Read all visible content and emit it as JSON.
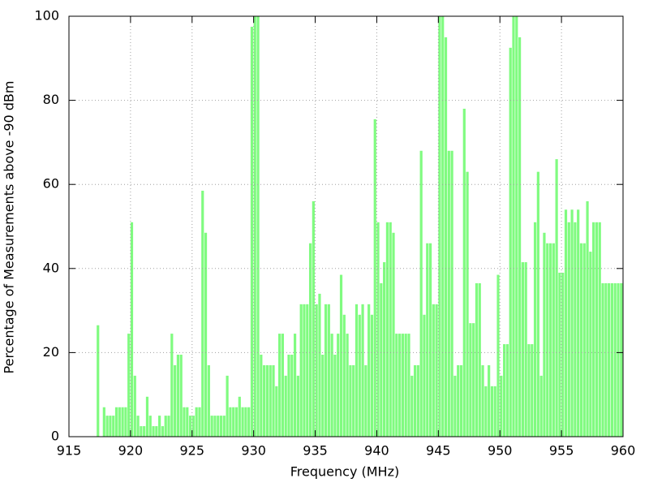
{
  "chart_data": {
    "type": "histogram",
    "x_label": "Frequency (MHz)",
    "y_label": "Percentage of Measurements above -90 dBm",
    "color": "#80fb80",
    "grid": true,
    "xlim": [
      915,
      960
    ],
    "ylim": [
      0,
      100
    ],
    "xticks": [
      915,
      920,
      925,
      930,
      935,
      940,
      945,
      950,
      955,
      960
    ],
    "yticks": [
      0,
      20,
      40,
      60,
      80,
      100
    ],
    "bins": [
      917.25,
      917.5,
      917.75,
      918,
      918.25,
      918.5,
      918.75,
      919,
      919.25,
      919.5,
      919.75,
      920,
      920.25,
      920.5,
      920.75,
      921,
      921.25,
      921.5,
      921.75,
      922,
      922.25,
      922.5,
      922.75,
      923,
      923.25,
      923.5,
      923.75,
      924,
      924.25,
      924.5,
      924.75,
      925,
      925.25,
      925.5,
      925.75,
      926,
      926.25,
      926.5,
      926.75,
      927,
      927.25,
      927.5,
      927.75,
      928,
      928.25,
      928.5,
      928.75,
      929,
      929.25,
      929.5,
      929.75,
      930,
      930.25,
      930.5,
      930.75,
      931,
      931.25,
      931.5,
      931.75,
      932,
      932.25,
      932.5,
      932.75,
      933,
      933.25,
      933.5,
      933.75,
      934,
      934.25,
      934.5,
      934.75,
      935,
      935.25,
      935.5,
      935.75,
      936,
      936.25,
      936.5,
      936.75,
      937,
      937.25,
      937.5,
      937.75,
      938,
      938.25,
      938.5,
      938.75,
      939,
      939.25,
      939.5,
      939.75,
      940,
      940.25,
      940.5,
      940.75,
      941,
      941.25,
      941.5,
      941.75,
      942,
      942.25,
      942.5,
      942.75,
      943,
      943.25,
      943.5,
      943.75,
      944,
      944.25,
      944.5,
      944.75,
      945,
      945.25,
      945.5,
      945.75,
      946,
      946.25,
      946.5,
      946.75,
      947,
      947.25,
      947.5,
      947.75,
      948,
      948.25,
      948.5,
      948.75,
      949,
      949.25,
      949.5,
      949.75,
      950,
      950.25,
      950.5,
      950.75,
      951,
      951.25,
      951.5,
      951.75,
      952,
      952.25,
      952.5,
      952.75,
      953,
      953.25,
      953.5,
      953.75,
      954,
      954.25,
      954.5,
      954.75,
      955,
      955.25,
      955.5,
      955.75,
      956,
      956.25,
      956.5,
      956.75,
      957,
      957.25,
      957.5,
      957.75,
      958,
      958.25,
      958.5,
      958.75,
      959,
      959.25,
      959.5,
      959.75,
      960
    ],
    "values": [
      26.5,
      0,
      7,
      5,
      5,
      5,
      7,
      7,
      7,
      7,
      24.5,
      51,
      14.5,
      5,
      2.5,
      2.5,
      9.5,
      5,
      2.5,
      2.5,
      5,
      2.5,
      5,
      5,
      24.5,
      17,
      19.5,
      19.5,
      7,
      7,
      5,
      5,
      7,
      7,
      58.5,
      48.5,
      17,
      5,
      5,
      5,
      5,
      5,
      14.5,
      7,
      7,
      7,
      9.5,
      7,
      7,
      7,
      97.5,
      100,
      100,
      19.5,
      17,
      17,
      17,
      17,
      12,
      24.5,
      24.5,
      14.5,
      19.5,
      19.5,
      24.5,
      14.5,
      31.5,
      31.5,
      31.5,
      46,
      56,
      31.5,
      34,
      19.5,
      31.5,
      31.5,
      24.5,
      19.5,
      24.5,
      38.5,
      29,
      24.5,
      17,
      17,
      31.5,
      29,
      31.5,
      17,
      31.5,
      29,
      75.5,
      51,
      36.5,
      41.5,
      51,
      51,
      48.5,
      24.5,
      24.5,
      24.5,
      24.5,
      24.5,
      14.5,
      17,
      17,
      68,
      29,
      46,
      46,
      31.5,
      31.5,
      100,
      100,
      95,
      68,
      68,
      14.5,
      17,
      17,
      78,
      63,
      27,
      27,
      36.5,
      36.5,
      17,
      12,
      17,
      12,
      12,
      38.5,
      14.5,
      22,
      22,
      92.5,
      100,
      100,
      95,
      41.5,
      41.5,
      22,
      22,
      51,
      63,
      14.5,
      48.5,
      46,
      46,
      46,
      66,
      39,
      39,
      54,
      51,
      54,
      51,
      54,
      46,
      46,
      56,
      44,
      51,
      51,
      51,
      36.5,
      36.5,
      36.5,
      36.5,
      36.5,
      36.5,
      36.5
    ]
  }
}
